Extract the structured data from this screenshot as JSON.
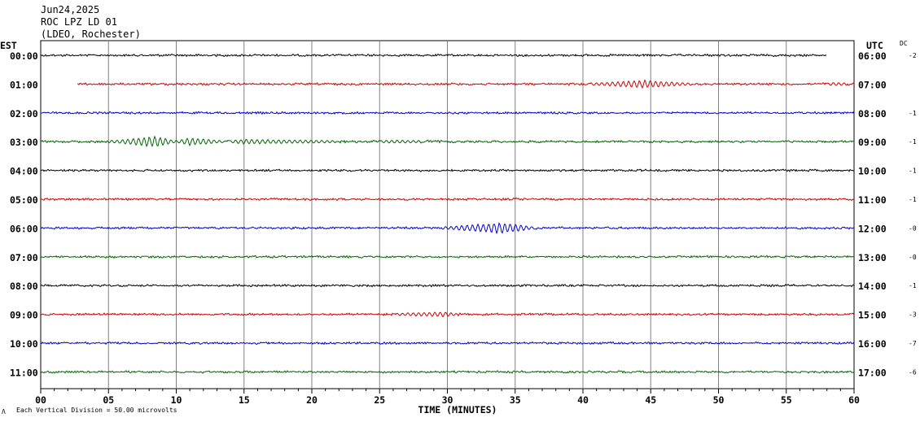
{
  "header": {
    "date": "Jun24,2025",
    "station": "ROC LPZ LD 01",
    "network": "(LDEO, Rochester)"
  },
  "left_axis_label": "EST",
  "right_axis_label": "UTC",
  "dc_label": "DC",
  "footer": {
    "note_prefix": "Λ",
    "note": "Each Vertical Division =   50.00 microvolts"
  },
  "chart_data": {
    "type": "line",
    "xlabel": "TIME (MINUTES)",
    "xlim": [
      0,
      60
    ],
    "x_ticks": [
      "00",
      "05",
      "10",
      "15",
      "20",
      "25",
      "30",
      "35",
      "40",
      "45",
      "50",
      "55",
      "60"
    ],
    "grid": true,
    "trace_colors": [
      "#000000",
      "#cc0000",
      "#0000cc",
      "#006600"
    ],
    "rows": [
      {
        "est": "00:00",
        "utc": "06:00",
        "dc": "-2",
        "color": "#000000",
        "start_min": 0,
        "end_min": 58,
        "events": []
      },
      {
        "est": "01:00",
        "utc": "07:00",
        "dc": "",
        "color": "#cc0000",
        "start_min": 2.7,
        "end_min": 60,
        "events": [
          {
            "start": 40.5,
            "center": 44.5,
            "end": 48,
            "amp": 5
          },
          {
            "start": 57.5,
            "center": 58.5,
            "end": 60,
            "amp": 2
          }
        ]
      },
      {
        "est": "02:00",
        "utc": "08:00",
        "dc": "-1",
        "color": "#0000cc",
        "start_min": 0,
        "end_min": 60,
        "events": []
      },
      {
        "est": "03:00",
        "utc": "09:00",
        "dc": "-1",
        "color": "#006600",
        "start_min": 0,
        "end_min": 60,
        "events": [
          {
            "start": 5,
            "center": 8.5,
            "end": 10,
            "amp": 7
          },
          {
            "start": 10,
            "center": 11,
            "end": 13.5,
            "amp": 5
          },
          {
            "start": 13.5,
            "center": 15,
            "end": 24,
            "amp": 3
          },
          {
            "start": 24,
            "center": 26,
            "end": 30,
            "amp": 2
          }
        ]
      },
      {
        "est": "04:00",
        "utc": "10:00",
        "dc": "-1",
        "color": "#000000",
        "start_min": 0,
        "end_min": 60,
        "events": []
      },
      {
        "est": "05:00",
        "utc": "11:00",
        "dc": "-1",
        "color": "#cc0000",
        "start_min": 0,
        "end_min": 60,
        "events": []
      },
      {
        "est": "06:00",
        "utc": "12:00",
        "dc": "-0",
        "color": "#0000cc",
        "start_min": 0,
        "end_min": 60,
        "events": [
          {
            "start": 29.5,
            "center": 34,
            "end": 36.5,
            "amp": 7
          }
        ]
      },
      {
        "est": "07:00",
        "utc": "13:00",
        "dc": "-0",
        "color": "#006600",
        "start_min": 0,
        "end_min": 60,
        "events": []
      },
      {
        "est": "08:00",
        "utc": "14:00",
        "dc": "-1",
        "color": "#000000",
        "start_min": 0,
        "end_min": 60,
        "events": []
      },
      {
        "est": "09:00",
        "utc": "15:00",
        "dc": "-3",
        "color": "#cc0000",
        "start_min": 0,
        "end_min": 60,
        "events": [
          {
            "start": 25,
            "center": 29.7,
            "end": 31,
            "amp": 3
          }
        ]
      },
      {
        "est": "10:00",
        "utc": "16:00",
        "dc": "-7",
        "color": "#0000cc",
        "start_min": 0,
        "end_min": 60,
        "events": []
      },
      {
        "est": "11:00",
        "utc": "17:00",
        "dc": "-6",
        "color": "#006600",
        "start_min": 0,
        "end_min": 60,
        "events": []
      }
    ]
  }
}
